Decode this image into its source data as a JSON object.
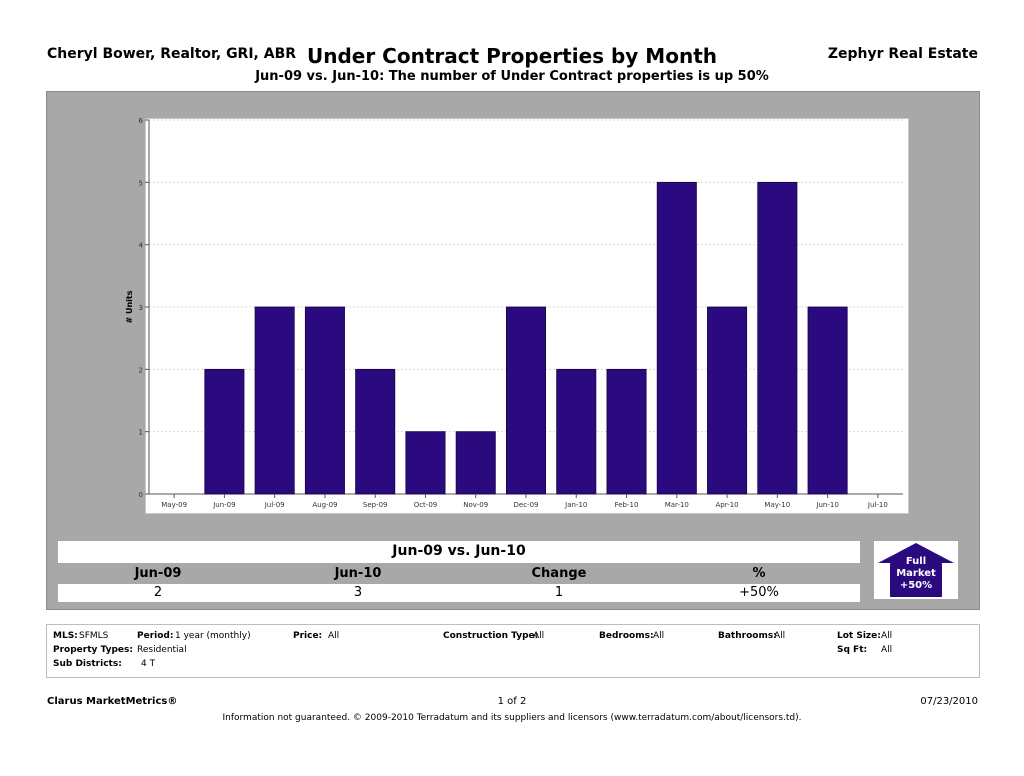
{
  "header": {
    "agent": "Cheryl Bower, Realtor, GRI, ABR",
    "title": "Under Contract Properties by Month",
    "company": "Zephyr Real Estate",
    "subtitle": "Jun-09 vs. Jun-10: The number of Under Contract properties is up 50%"
  },
  "chart_data": {
    "type": "bar",
    "title": "Under Contract Properties by Month",
    "subtitle": "Jun-09 vs. Jun-10: The number of Under Contract properties is up 50%",
    "xlabel": "",
    "ylabel": "# Units",
    "categories": [
      "May-09",
      "Jun-09",
      "Jul-09",
      "Aug-09",
      "Sep-09",
      "Oct-09",
      "Nov-09",
      "Dec-09",
      "Jan-10",
      "Feb-10",
      "Mar-10",
      "Apr-10",
      "May-10",
      "Jun-10",
      "Jul-10"
    ],
    "values": [
      0,
      2,
      3,
      3,
      2,
      1,
      1,
      3,
      2,
      2,
      5,
      3,
      5,
      3,
      0
    ],
    "ylim": [
      0,
      6
    ],
    "yticks": [
      0,
      1,
      2,
      3,
      4,
      5,
      6
    ],
    "grid": true,
    "bar_color": "#2b0a80"
  },
  "summary": {
    "title": "Jun-09 vs. Jun-10",
    "columns": [
      "Jun-09",
      "Jun-10",
      "Change",
      "%"
    ],
    "values": [
      "2",
      "3",
      "1",
      "+50%"
    ]
  },
  "market_badge": {
    "line1": "Full",
    "line2": "Market",
    "line3": "+50%",
    "color": "#2b0a80"
  },
  "criteria": {
    "mls_label": "MLS:",
    "mls_value": "SFMLS",
    "period_label": "Period:",
    "period_value": "1 year (monthly)",
    "price_label": "Price:",
    "price_value": "All",
    "construction_label": "Construction Type:",
    "construction_value": "All",
    "bedrooms_label": "Bedrooms:",
    "bedrooms_value": "All",
    "bathrooms_label": "Bathrooms:",
    "bathrooms_value": "All",
    "lotsize_label": "Lot Size:",
    "lotsize_value": "All",
    "proptypes_label": "Property Types:",
    "proptypes_value": "Residential",
    "sqft_label": "Sq Ft:",
    "sqft_value": "All",
    "subdistricts_label": "Sub Districts:",
    "subdistricts_value": "4 T"
  },
  "footer": {
    "brand": "Clarus MarketMetrics®",
    "page": "1 of 2",
    "date": "07/23/2010",
    "disclaimer": "Information not guaranteed.  © 2009-2010 Terradatum and its suppliers and licensors (www.terradatum.com/about/licensors.td)."
  }
}
